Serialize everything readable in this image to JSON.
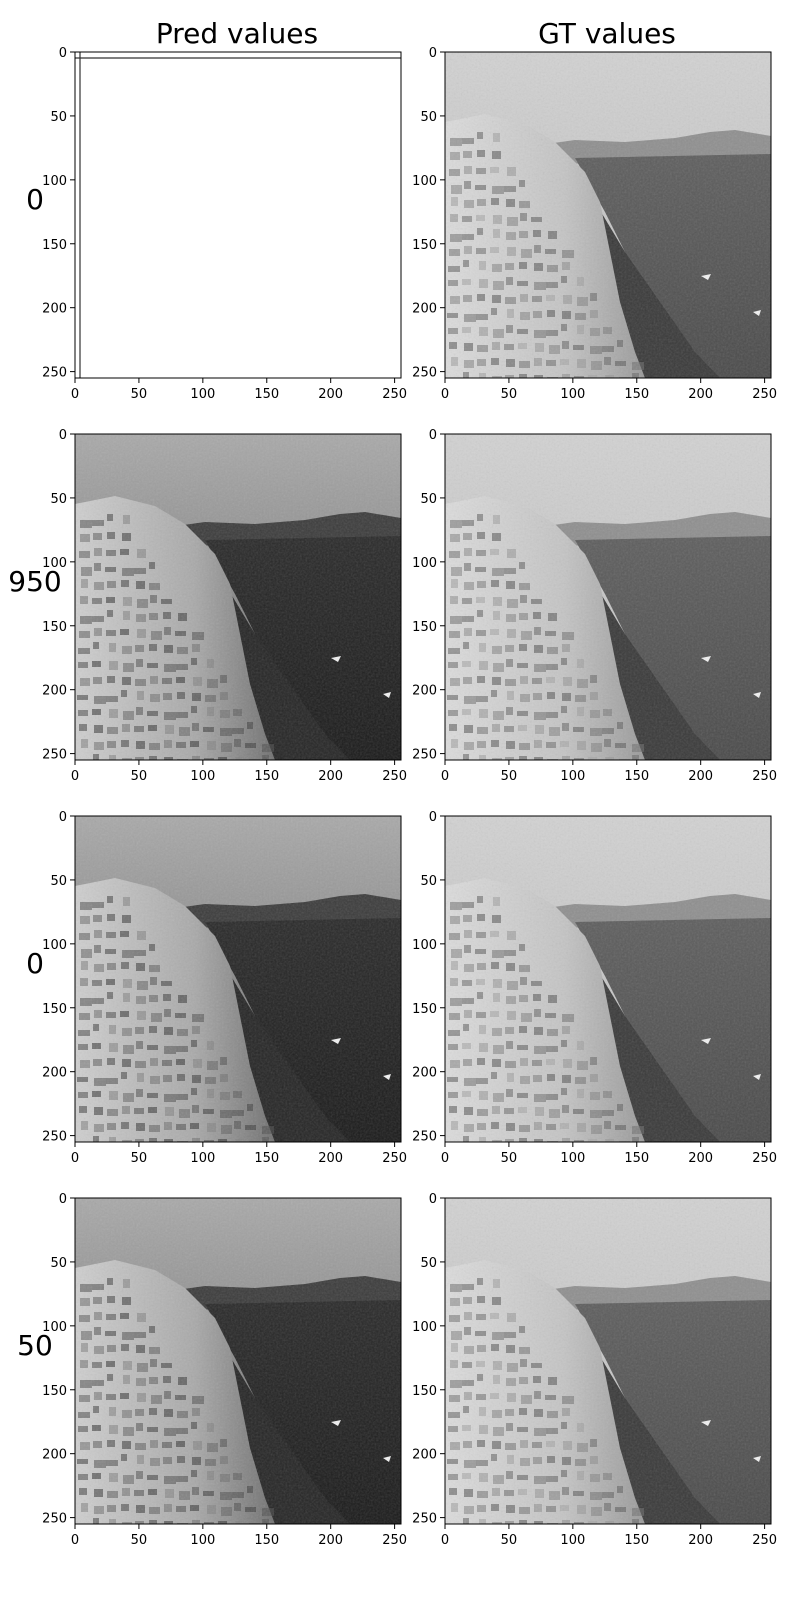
{
  "chart_data": {
    "type": "image-grid",
    "columns": [
      {
        "title": "Pred values"
      },
      {
        "title": "GT values"
      }
    ],
    "rows": [
      {
        "label": "0",
        "pred": "noisy-blur",
        "gt": "santorini-grayscale"
      },
      {
        "label": "950",
        "pred": "santorini-reconstruction-dark",
        "gt": "santorini-grayscale"
      },
      {
        "label": "0",
        "pred": "santorini-reconstruction-dark",
        "gt": "santorini-grayscale"
      },
      {
        "label": "50",
        "pred": "santorini-reconstruction-dark",
        "gt": "santorini-grayscale"
      }
    ],
    "x_ticks": [
      "0",
      "50",
      "100",
      "150",
      "200",
      "250"
    ],
    "y_ticks": [
      "0",
      "50",
      "100",
      "150",
      "200",
      "250"
    ],
    "axis_range": [
      0,
      255
    ],
    "colormap": "gray",
    "grid": false
  }
}
